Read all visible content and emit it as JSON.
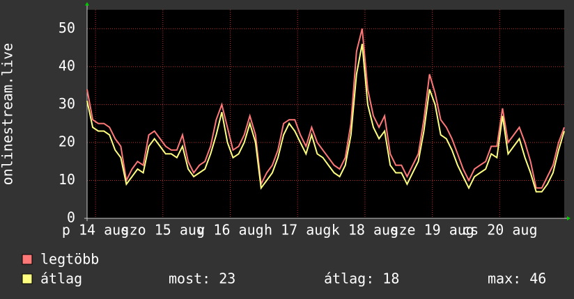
{
  "chart_data": {
    "type": "line",
    "ylabel": "onlinestream.live",
    "x": [
      0,
      2,
      4,
      6,
      8,
      10,
      12,
      14,
      16,
      18,
      20,
      22,
      24,
      26,
      28,
      30,
      32,
      34,
      36,
      38,
      40,
      42,
      44,
      46,
      48,
      50,
      52,
      54,
      56,
      58,
      60,
      62,
      64,
      66,
      68,
      70,
      72,
      74,
      76,
      78,
      80,
      82,
      84,
      86,
      88,
      90,
      92,
      94,
      96,
      98,
      100,
      102,
      104,
      106,
      108,
      110,
      112,
      114,
      116,
      118,
      120,
      122,
      124,
      126,
      128,
      130,
      132,
      134,
      136,
      138,
      140,
      142,
      144,
      146,
      148,
      150,
      152,
      154,
      156,
      158,
      160,
      162,
      164,
      166,
      168,
      170
    ],
    "xlim": [
      0,
      170
    ],
    "xticks": [
      {
        "value": 3,
        "label": "p 14 aug"
      },
      {
        "value": 27,
        "label": "szo 15 aug"
      },
      {
        "value": 51,
        "label": "v 16 aug"
      },
      {
        "value": 75,
        "label": "h 17 aug"
      },
      {
        "value": 99,
        "label": "k 18 aug"
      },
      {
        "value": 123,
        "label": "sze 19 aug"
      },
      {
        "value": 147,
        "label": "cs 20 aug"
      }
    ],
    "ylim": [
      0,
      55
    ],
    "yticks": [
      0,
      10,
      20,
      30,
      40,
      50
    ],
    "grid": true,
    "series": [
      {
        "name": "legtöbb",
        "color": "#ff7878",
        "values": [
          34,
          26,
          25,
          25,
          24,
          21,
          19,
          10,
          13,
          15,
          14,
          22,
          23,
          21,
          19,
          18,
          18,
          22,
          15,
          12,
          14,
          15,
          19,
          26,
          30,
          24,
          18,
          19,
          22,
          27,
          22,
          9,
          12,
          14,
          18,
          25,
          26,
          26,
          22,
          19,
          24,
          20,
          18,
          16,
          14,
          13,
          16,
          25,
          44,
          50,
          34,
          27,
          24,
          27,
          17,
          14,
          14,
          11,
          14,
          17,
          26,
          38,
          33,
          26,
          24,
          21,
          17,
          13,
          10,
          13,
          14,
          15,
          19,
          19,
          29,
          20,
          22,
          24,
          20,
          15,
          8,
          8,
          11,
          14,
          20,
          24
        ]
      },
      {
        "name": "átlag",
        "color": "#ffff80",
        "values": [
          31,
          24,
          23,
          23,
          22,
          18,
          16,
          9,
          11,
          13,
          12,
          19,
          21,
          19,
          17,
          17,
          16,
          19,
          13,
          11,
          12,
          13,
          17,
          22,
          28,
          20,
          16,
          17,
          20,
          25,
          20,
          8,
          10,
          12,
          16,
          22,
          25,
          23,
          20,
          17,
          22,
          17,
          16,
          14,
          12,
          11,
          14,
          22,
          38,
          46,
          30,
          24,
          21,
          23,
          14,
          12,
          12,
          9,
          12,
          15,
          23,
          34,
          30,
          22,
          21,
          18,
          14,
          11,
          8,
          11,
          12,
          13,
          17,
          16,
          27,
          17,
          19,
          21,
          16,
          12,
          7,
          7,
          9,
          12,
          18,
          23
        ]
      }
    ],
    "stats": [
      "most: 23",
      "átlag: 18",
      "max: 46"
    ]
  }
}
